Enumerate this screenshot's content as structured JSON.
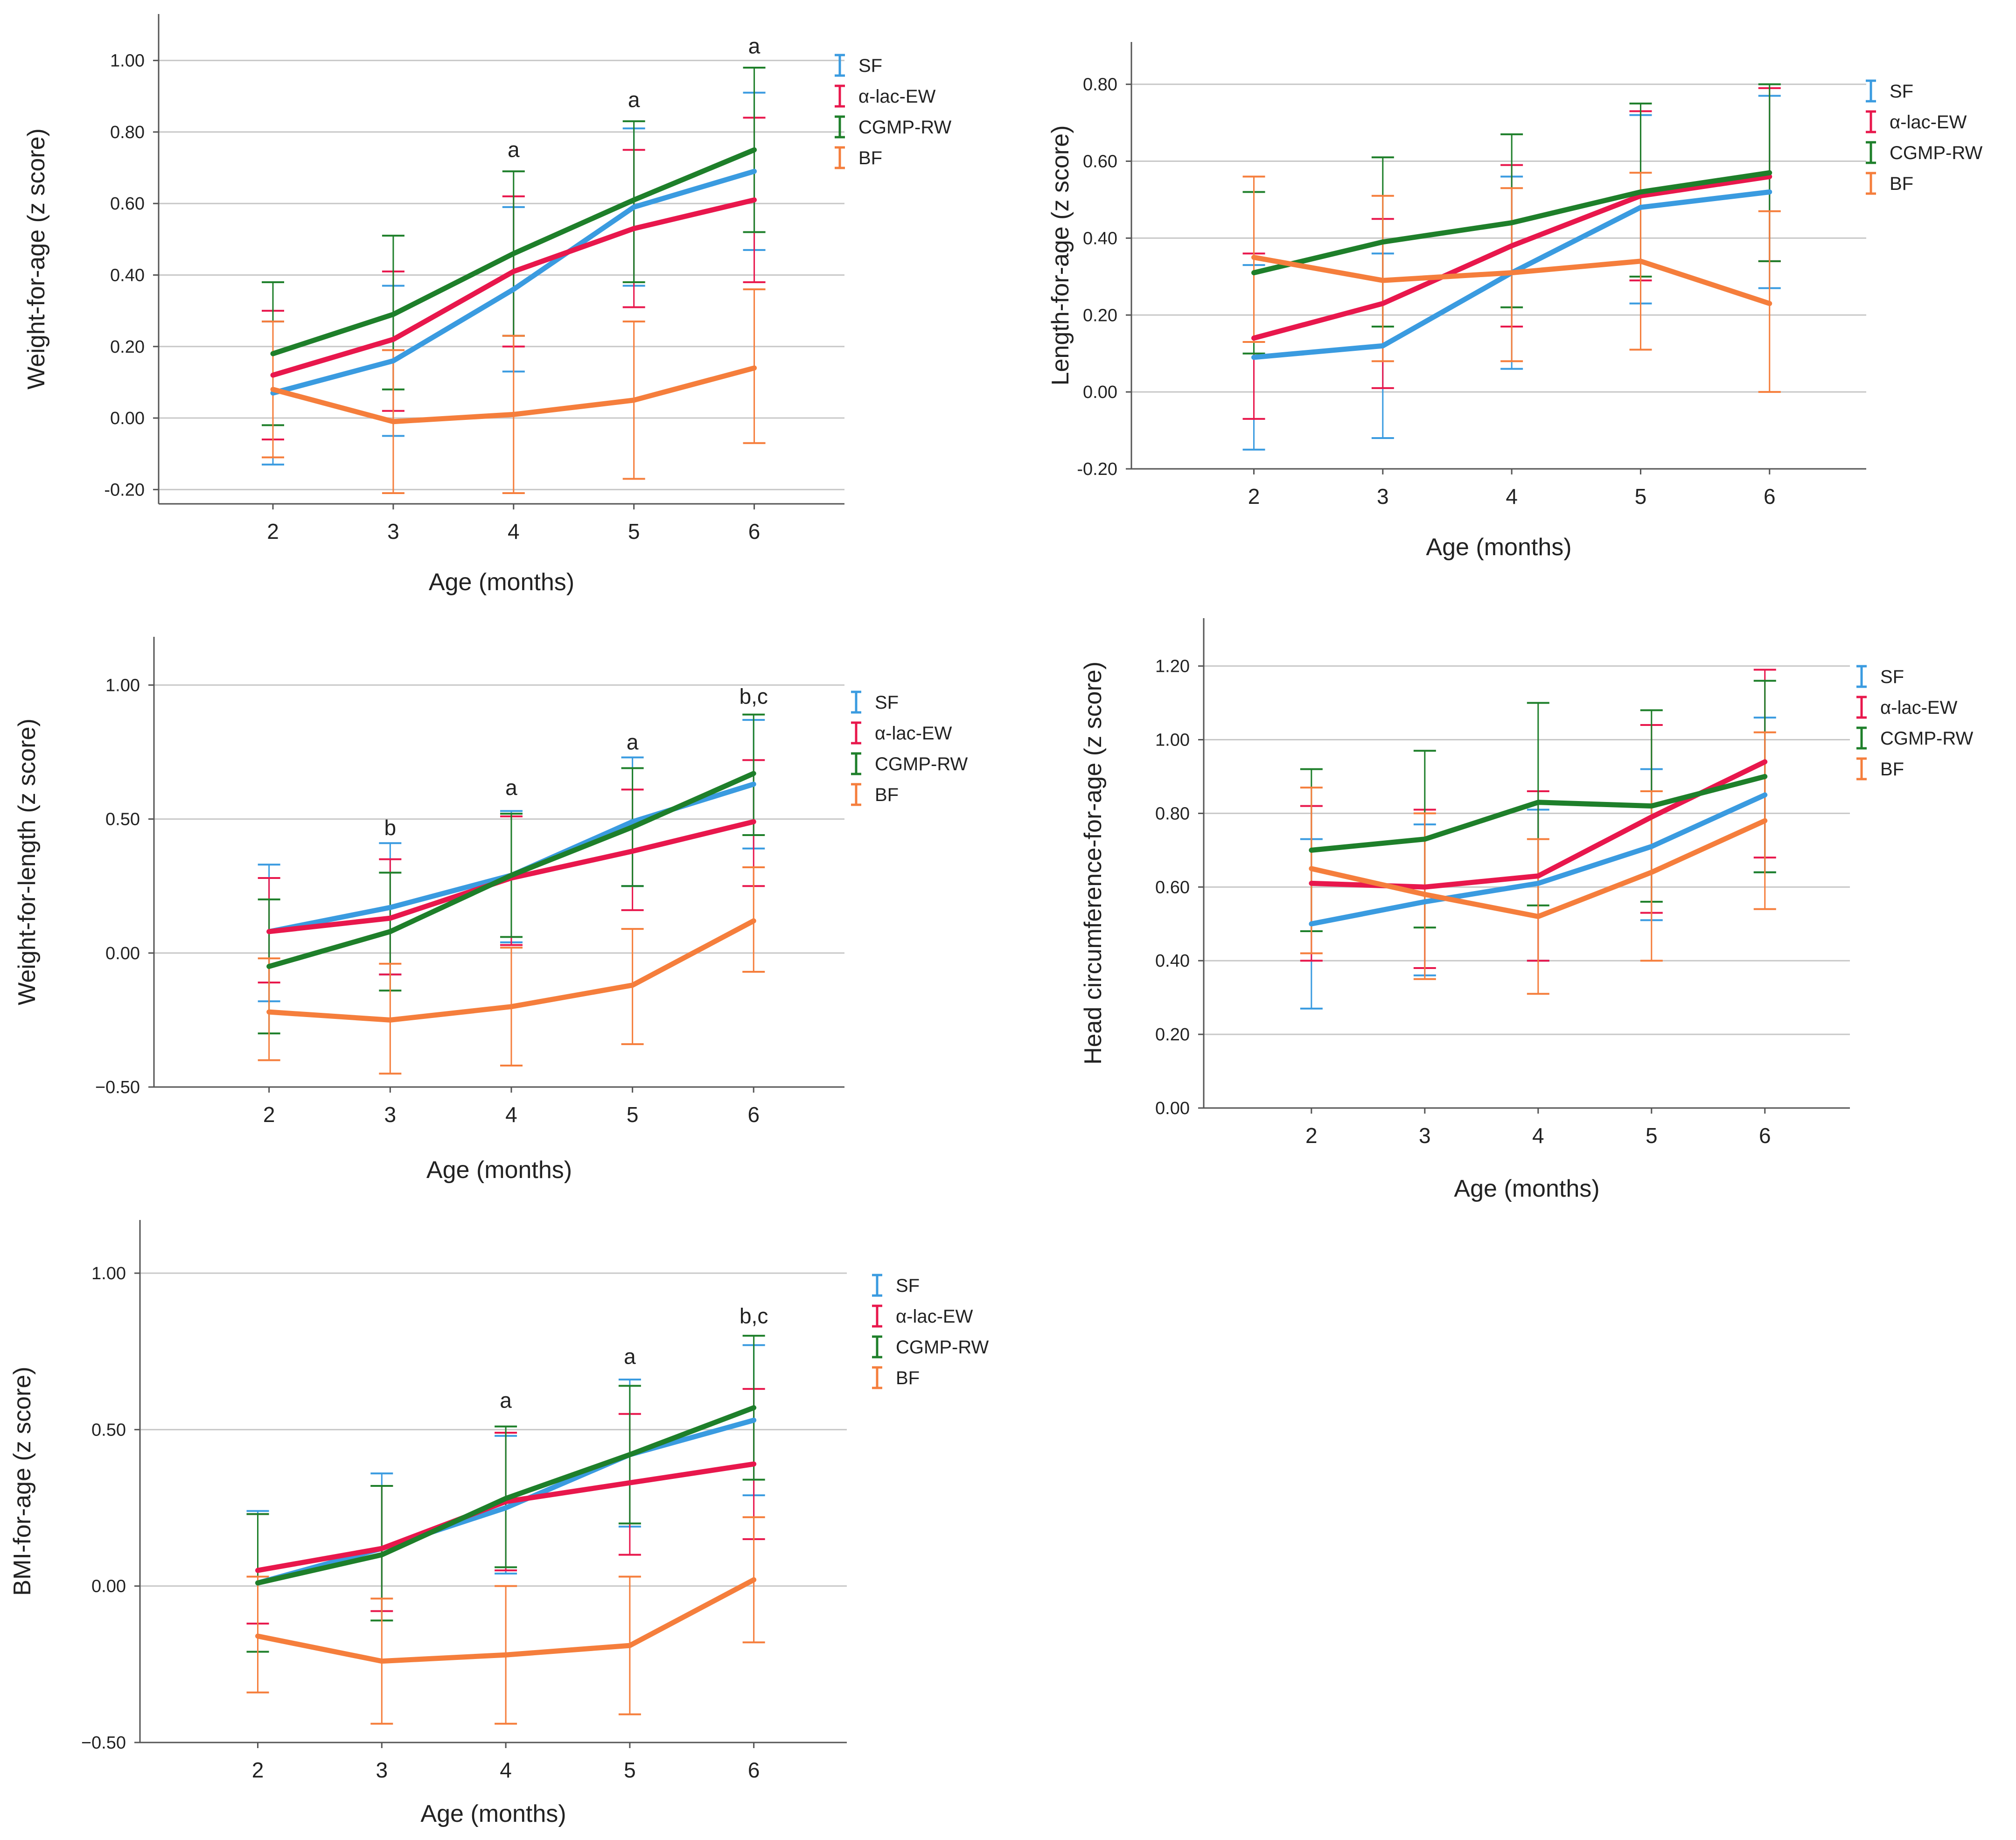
{
  "colors": {
    "SF": "#3A9BE0",
    "alpha_lac_EW": "#E8174C",
    "CGMP_RW": "#1E7F2A",
    "BF": "#F57E3C",
    "gridline": "#C8C8C8",
    "axis": "#555555"
  },
  "legend": [
    "SF",
    "α-lac-EW",
    "CGMP-RW",
    "BF"
  ],
  "chart_data": [
    {
      "id": "weight-for-age",
      "type": "line",
      "title": "",
      "xlabel": "Age (months)",
      "ylabel": "Weight-for-age (z score)",
      "x": [
        2,
        3,
        4,
        5,
        6
      ],
      "ylim": [
        -0.24,
        1.13
      ],
      "yticks": [
        -0.2,
        0.0,
        0.2,
        0.4,
        0.6,
        0.8,
        1.0
      ],
      "ytick_labels": [
        "-0.20",
        "0.00",
        "0.20",
        "0.40",
        "0.60",
        "0.80",
        "1.00"
      ],
      "grid": true,
      "legend_position": "top-right",
      "annotations": [
        {
          "x": 4,
          "y": 0.73,
          "text": "a"
        },
        {
          "x": 5,
          "y": 0.87,
          "text": "a"
        },
        {
          "x": 6,
          "y": 1.02,
          "text": "a"
        }
      ],
      "series": [
        {
          "name": "SF",
          "values": [
            0.07,
            0.16,
            0.36,
            0.59,
            0.69
          ],
          "lower": [
            -0.13,
            -0.05,
            0.13,
            0.37,
            0.47
          ],
          "upper": [
            0.27,
            0.37,
            0.59,
            0.81,
            0.91
          ]
        },
        {
          "name": "α-lac-EW",
          "values": [
            0.12,
            0.22,
            0.41,
            0.53,
            0.61
          ],
          "lower": [
            -0.06,
            0.02,
            0.2,
            0.31,
            0.38
          ],
          "upper": [
            0.3,
            0.41,
            0.62,
            0.75,
            0.84
          ]
        },
        {
          "name": "CGMP-RW",
          "values": [
            0.18,
            0.29,
            0.46,
            0.61,
            0.75
          ],
          "lower": [
            -0.02,
            0.08,
            0.23,
            0.38,
            0.52
          ],
          "upper": [
            0.38,
            0.51,
            0.69,
            0.83,
            0.98
          ]
        },
        {
          "name": "BF",
          "values": [
            0.08,
            -0.01,
            0.01,
            0.05,
            0.14
          ],
          "lower": [
            -0.11,
            -0.21,
            -0.21,
            -0.17,
            -0.07
          ],
          "upper": [
            0.27,
            0.19,
            0.23,
            0.27,
            0.36
          ]
        }
      ]
    },
    {
      "id": "length-for-age",
      "type": "line",
      "title": "",
      "xlabel": "Age (months)",
      "ylabel": "Length-for-age (z score)",
      "x": [
        2,
        3,
        4,
        5,
        6
      ],
      "ylim": [
        -0.2,
        0.91
      ],
      "yticks": [
        -0.2,
        0.0,
        0.2,
        0.4,
        0.6,
        0.8
      ],
      "ytick_labels": [
        "-0.20",
        "0.00",
        "0.20",
        "0.40",
        "0.60",
        "0.80"
      ],
      "grid": true,
      "legend_position": "top-right",
      "annotations": [],
      "series": [
        {
          "name": "SF",
          "values": [
            0.09,
            0.12,
            0.31,
            0.48,
            0.52
          ],
          "lower": [
            -0.15,
            -0.12,
            0.06,
            0.23,
            0.27
          ],
          "upper": [
            0.33,
            0.36,
            0.56,
            0.72,
            0.77
          ]
        },
        {
          "name": "α-lac-EW",
          "values": [
            0.14,
            0.23,
            0.38,
            0.51,
            0.56
          ],
          "lower": [
            -0.07,
            0.01,
            0.17,
            0.29,
            0.34
          ],
          "upper": [
            0.36,
            0.45,
            0.59,
            0.73,
            0.79
          ]
        },
        {
          "name": "CGMP-RW",
          "values": [
            0.31,
            0.39,
            0.44,
            0.52,
            0.57
          ],
          "lower": [
            0.1,
            0.17,
            0.22,
            0.3,
            0.34
          ],
          "upper": [
            0.52,
            0.61,
            0.67,
            0.75,
            0.8
          ]
        },
        {
          "name": "BF",
          "values": [
            0.35,
            0.29,
            0.31,
            0.34,
            0.23
          ],
          "lower": [
            0.13,
            0.08,
            0.08,
            0.11,
            0.0
          ],
          "upper": [
            0.56,
            0.51,
            0.53,
            0.57,
            0.47
          ]
        }
      ]
    },
    {
      "id": "weight-for-length",
      "type": "line",
      "title": "",
      "xlabel": "Age (months)",
      "ylabel": "Weight-for-length (z score)",
      "x": [
        2,
        3,
        4,
        5,
        6
      ],
      "ylim": [
        -0.5,
        1.18
      ],
      "yticks": [
        -0.5,
        0.0,
        0.5,
        1.0
      ],
      "ytick_labels": [
        "−0.50",
        "0.00",
        "0.50",
        "1.00"
      ],
      "grid": true,
      "legend_position": "top-right",
      "annotations": [
        {
          "x": 3,
          "y": 0.44,
          "text": "b"
        },
        {
          "x": 4,
          "y": 0.59,
          "text": "a"
        },
        {
          "x": 5,
          "y": 0.76,
          "text": "a"
        },
        {
          "x": 6,
          "y": 0.93,
          "text": "b,c"
        }
      ],
      "series": [
        {
          "name": "SF",
          "values": [
            0.08,
            0.17,
            0.29,
            0.49,
            0.63
          ],
          "lower": [
            -0.18,
            -0.08,
            0.04,
            0.25,
            0.39
          ],
          "upper": [
            0.33,
            0.41,
            0.53,
            0.73,
            0.87
          ]
        },
        {
          "name": "α-lac-EW",
          "values": [
            0.08,
            0.13,
            0.28,
            0.38,
            0.49
          ],
          "lower": [
            -0.11,
            -0.08,
            0.03,
            0.16,
            0.25
          ],
          "upper": [
            0.28,
            0.35,
            0.51,
            0.61,
            0.72
          ]
        },
        {
          "name": "CGMP-RW",
          "values": [
            -0.05,
            0.08,
            0.29,
            0.47,
            0.67
          ],
          "lower": [
            -0.3,
            -0.14,
            0.06,
            0.25,
            0.44
          ],
          "upper": [
            0.2,
            0.3,
            0.52,
            0.69,
            0.89
          ]
        },
        {
          "name": "BF",
          "values": [
            -0.22,
            -0.25,
            -0.2,
            -0.12,
            0.12
          ],
          "lower": [
            -0.4,
            -0.45,
            -0.42,
            -0.34,
            -0.07
          ],
          "upper": [
            -0.02,
            -0.04,
            0.02,
            0.09,
            0.32
          ]
        }
      ]
    },
    {
      "id": "head-circumference-for-age",
      "type": "line",
      "title": "",
      "xlabel": "Age (months)",
      "ylabel": "Head circumference-for-age (z score)",
      "x": [
        2,
        3,
        4,
        5,
        6
      ],
      "ylim": [
        0.0,
        1.33
      ],
      "yticks": [
        0.0,
        0.2,
        0.4,
        0.6,
        0.8,
        1.0,
        1.2
      ],
      "ytick_labels": [
        "0.00",
        "0.20",
        "0.40",
        "0.60",
        "0.80",
        "1.00",
        "1.20"
      ],
      "grid": true,
      "legend_position": "top-right",
      "annotations": [],
      "series": [
        {
          "name": "SF",
          "values": [
            0.5,
            0.56,
            0.61,
            0.71,
            0.85
          ],
          "lower": [
            0.27,
            0.36,
            0.4,
            0.51,
            0.64
          ],
          "upper": [
            0.73,
            0.77,
            0.81,
            0.92,
            1.06
          ]
        },
        {
          "name": "α-lac-EW",
          "values": [
            0.61,
            0.6,
            0.63,
            0.79,
            0.94
          ],
          "lower": [
            0.4,
            0.38,
            0.4,
            0.53,
            0.68
          ],
          "upper": [
            0.82,
            0.81,
            0.86,
            1.04,
            1.19
          ]
        },
        {
          "name": "CGMP-RW",
          "values": [
            0.7,
            0.73,
            0.83,
            0.82,
            0.9
          ],
          "lower": [
            0.48,
            0.49,
            0.55,
            0.56,
            0.64
          ],
          "upper": [
            0.92,
            0.97,
            1.1,
            1.08,
            1.16
          ]
        },
        {
          "name": "BF",
          "values": [
            0.65,
            0.58,
            0.52,
            0.64,
            0.78
          ],
          "lower": [
            0.42,
            0.35,
            0.31,
            0.4,
            0.54
          ],
          "upper": [
            0.87,
            0.8,
            0.73,
            0.86,
            1.02
          ]
        }
      ]
    },
    {
      "id": "bmi-for-age",
      "type": "line",
      "title": "",
      "xlabel": "Age (months)",
      "ylabel": "BMI-for-age (z score)",
      "x": [
        2,
        3,
        4,
        5,
        6
      ],
      "ylim": [
        -0.5,
        1.17
      ],
      "yticks": [
        -0.5,
        0.0,
        0.5,
        1.0
      ],
      "ytick_labels": [
        "−0.50",
        "0.00",
        "0.50",
        "1.00"
      ],
      "grid": true,
      "legend_position": "top-right",
      "annotations": [
        {
          "x": 4,
          "y": 0.57,
          "text": "a"
        },
        {
          "x": 5,
          "y": 0.71,
          "text": "a"
        },
        {
          "x": 6,
          "y": 0.84,
          "text": "b,c"
        }
      ],
      "series": [
        {
          "name": "SF",
          "values": [
            0.01,
            0.12,
            0.25,
            0.42,
            0.53
          ],
          "lower": [
            -0.21,
            -0.11,
            0.04,
            0.19,
            0.29
          ],
          "upper": [
            0.24,
            0.36,
            0.48,
            0.66,
            0.77
          ]
        },
        {
          "name": "α-lac-EW",
          "values": [
            0.05,
            0.12,
            0.27,
            0.33,
            0.39
          ],
          "lower": [
            -0.12,
            -0.08,
            0.05,
            0.1,
            0.15
          ],
          "upper": [
            0.23,
            0.32,
            0.49,
            0.55,
            0.63
          ]
        },
        {
          "name": "CGMP-RW",
          "values": [
            0.01,
            0.1,
            0.28,
            0.42,
            0.57
          ],
          "lower": [
            -0.21,
            -0.11,
            0.06,
            0.2,
            0.34
          ],
          "upper": [
            0.23,
            0.32,
            0.51,
            0.64,
            0.8
          ]
        },
        {
          "name": "BF",
          "values": [
            -0.16,
            -0.24,
            -0.22,
            -0.19,
            0.02
          ],
          "lower": [
            -0.34,
            -0.44,
            -0.44,
            -0.41,
            -0.18
          ],
          "upper": [
            0.03,
            -0.04,
            0.0,
            0.03,
            0.22
          ]
        }
      ]
    }
  ]
}
